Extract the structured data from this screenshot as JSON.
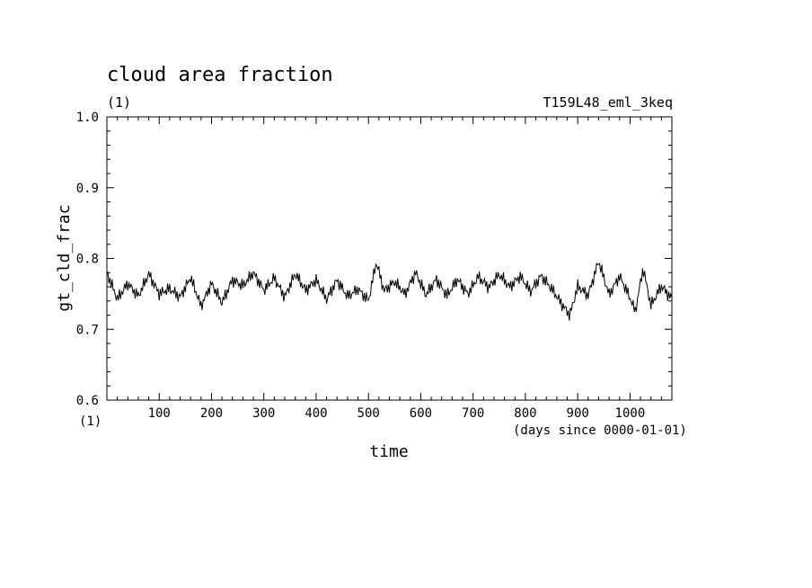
{
  "chart_data": {
    "type": "line",
    "title": "cloud area fraction",
    "units_left": "(1)",
    "experiment": "T159L48_eml_3keq",
    "xlabel": "time",
    "x_units": "(days since 0000-01-01)",
    "ylabel": "gt_cld_frac",
    "y_units": "(1)",
    "xlim": [
      0,
      1080
    ],
    "ylim": [
      0.6,
      1.0
    ],
    "x_ticks": [
      100,
      200,
      300,
      400,
      500,
      600,
      700,
      800,
      900,
      1000
    ],
    "y_ticks": [
      "0.6",
      "0.7",
      "0.8",
      "0.9",
      "1.0"
    ],
    "grid": false,
    "series": [
      {
        "color": "#000000",
        "x": [
          0,
          20,
          40,
          60,
          80,
          100,
          120,
          140,
          160,
          180,
          200,
          220,
          240,
          260,
          280,
          300,
          320,
          340,
          360,
          380,
          400,
          420,
          440,
          460,
          480,
          500,
          515,
          530,
          550,
          570,
          590,
          610,
          630,
          650,
          670,
          690,
          710,
          730,
          750,
          770,
          790,
          810,
          830,
          850,
          870,
          885,
          900,
          920,
          940,
          960,
          980,
          1000,
          1010,
          1025,
          1040,
          1060,
          1080
        ],
        "y": [
          0.775,
          0.74,
          0.765,
          0.75,
          0.783,
          0.755,
          0.76,
          0.745,
          0.77,
          0.728,
          0.76,
          0.735,
          0.77,
          0.765,
          0.785,
          0.76,
          0.775,
          0.745,
          0.775,
          0.75,
          0.765,
          0.74,
          0.77,
          0.75,
          0.762,
          0.745,
          0.798,
          0.755,
          0.765,
          0.745,
          0.775,
          0.745,
          0.77,
          0.75,
          0.775,
          0.755,
          0.778,
          0.76,
          0.775,
          0.755,
          0.77,
          0.75,
          0.775,
          0.76,
          0.74,
          0.725,
          0.765,
          0.75,
          0.795,
          0.745,
          0.77,
          0.74,
          0.722,
          0.785,
          0.735,
          0.765,
          0.748
        ]
      }
    ]
  }
}
